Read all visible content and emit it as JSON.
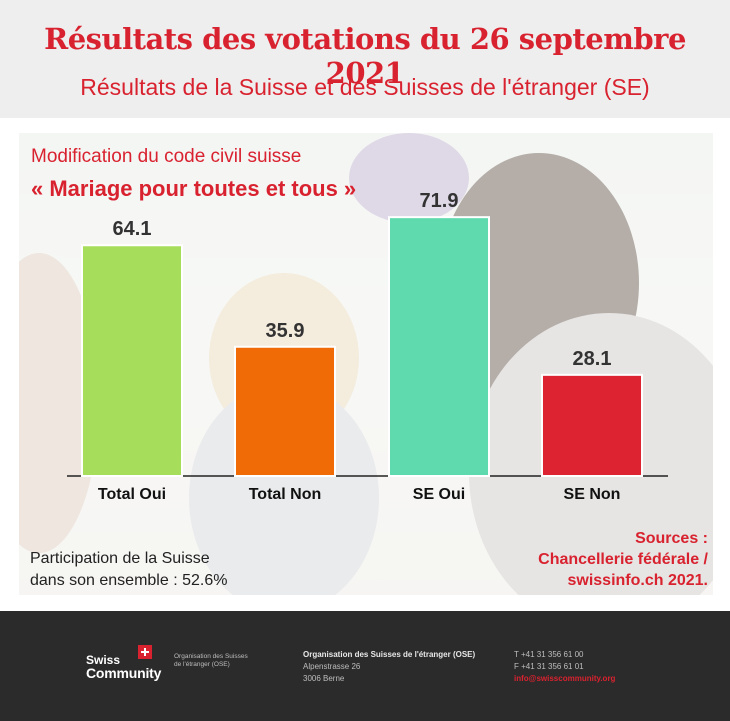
{
  "header": {
    "title": "Résultats des votations du 26 septembre 2021",
    "subtitle": "Résultats de la Suisse et des Suisses de l'étranger (SE)"
  },
  "chart_data": {
    "type": "bar",
    "title": "Modification du code civil suisse",
    "subtitle": "« Mariage pour toutes et tous »",
    "categories": [
      "Total Oui",
      "Total Non",
      "SE Oui",
      "SE Non"
    ],
    "values": [
      64.1,
      35.9,
      71.9,
      28.1
    ],
    "value_labels": [
      "64.1",
      "35.9",
      "71.9",
      "28.1"
    ],
    "colors": [
      "#a6de5c",
      "#f06a06",
      "#5fd9ae",
      "#dd2231"
    ],
    "xlabel": "",
    "ylabel": "",
    "ylim": [
      0,
      80
    ],
    "grid": false,
    "legend": "none"
  },
  "notes": {
    "participation_line1": "Participation de la Suisse",
    "participation_line2": "dans son ensemble : 52.6%",
    "sources_line1": "Sources :",
    "sources_line2": "Chancellerie fédérale /",
    "sources_line3": "swissinfo.ch 2021."
  },
  "footer": {
    "logo_swiss": "Swiss",
    "logo_community": "Community",
    "org_line1": "Organisation des Suisses",
    "org_line2": "de l'étranger (OSE)",
    "address_name": "Organisation des Suisses de l'étranger (OSE)",
    "address_street": "Alpenstrasse 26",
    "address_city": "3006 Berne",
    "phone": "T +41 31 356 61 00",
    "fax": "F +41 31 356 61 01",
    "email": "info@swisscommunity.org"
  }
}
